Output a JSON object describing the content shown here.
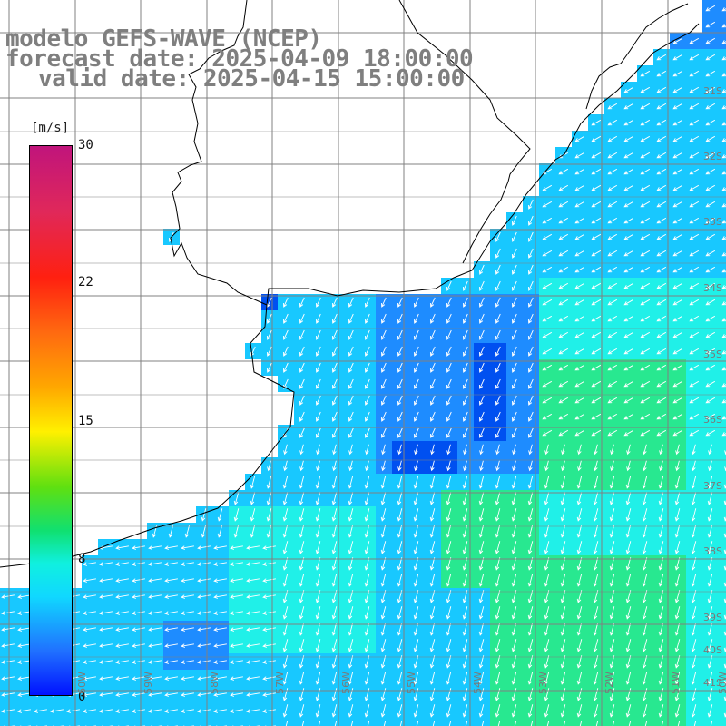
{
  "title": {
    "line1": "modelo GEFS-WAVE (NCEP)",
    "line2": "forecast date: 2025-04-09 18:00:00",
    "line3": "valid date: 2025-04-15 15:00:00"
  },
  "colorbar": {
    "unit": "[m/s]",
    "ticks": [
      "30",
      "22",
      "15",
      "8",
      "0"
    ]
  },
  "lat_labels": [
    "31S",
    "32S",
    "33S",
    "34S",
    "35S",
    "36S",
    "37S",
    "38S",
    "39S",
    "40S",
    "41S"
  ],
  "lon_labels": [
    "60W",
    "59W",
    "58W",
    "57W",
    "56W",
    "55W",
    "54W",
    "53W",
    "52W",
    "51W",
    "50W"
  ],
  "colors": {
    "dark_blue": "#0050f0",
    "blue": "#1e8cff",
    "cyan": "#18c8ff",
    "aqua": "#20f0e8",
    "green": "#28e890",
    "land": "#ffffff",
    "grid": "#808080",
    "coast": "#000000",
    "arrow": "#ffffff"
  }
}
